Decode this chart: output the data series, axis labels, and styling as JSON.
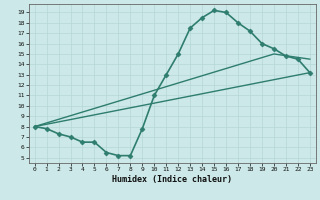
{
  "title": "",
  "xlabel": "Humidex (Indice chaleur)",
  "bg_color": "#cce8e8",
  "line_color": "#2e7d6e",
  "x_ticks": [
    0,
    1,
    2,
    3,
    4,
    5,
    6,
    7,
    8,
    9,
    10,
    11,
    12,
    13,
    14,
    15,
    16,
    17,
    18,
    19,
    20,
    21,
    22,
    23
  ],
  "y_ticks": [
    5,
    6,
    7,
    8,
    9,
    10,
    11,
    12,
    13,
    14,
    15,
    16,
    17,
    18,
    19
  ],
  "xlim": [
    -0.5,
    23.5
  ],
  "ylim": [
    4.5,
    19.8
  ],
  "series": [
    {
      "x": [
        0,
        1,
        2,
        3,
        4,
        5,
        6,
        7,
        8,
        9,
        10,
        11,
        12,
        13,
        14,
        15,
        16,
        17,
        18,
        19,
        20,
        21,
        22,
        23
      ],
      "y": [
        8.0,
        7.8,
        7.3,
        7.0,
        6.5,
        6.5,
        5.5,
        5.2,
        5.2,
        7.8,
        11.0,
        13.0,
        15.0,
        17.5,
        18.5,
        19.2,
        19.0,
        18.0,
        17.2,
        16.0,
        15.5,
        14.8,
        14.5,
        13.2
      ],
      "marker": "D",
      "markersize": 2.5,
      "linewidth": 1.2
    },
    {
      "x": [
        0,
        20,
        23
      ],
      "y": [
        8.0,
        15.0,
        14.5
      ],
      "marker": null,
      "markersize": 0,
      "linewidth": 1.0
    },
    {
      "x": [
        0,
        23
      ],
      "y": [
        8.0,
        13.2
      ],
      "marker": null,
      "markersize": 0,
      "linewidth": 1.0
    }
  ]
}
